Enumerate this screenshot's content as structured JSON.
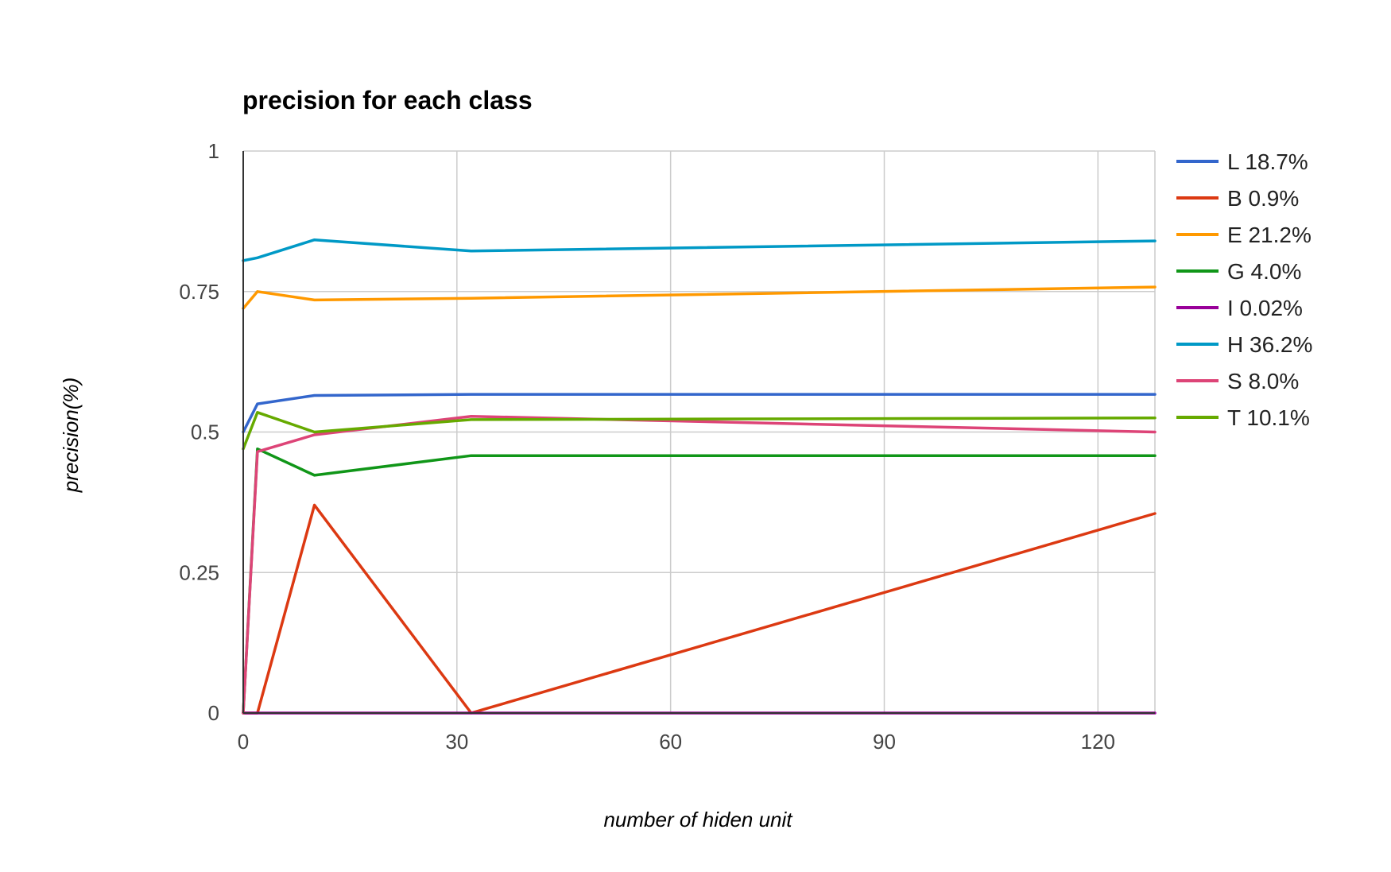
{
  "chart_data": {
    "type": "line",
    "title": "precision for each class",
    "xlabel": "number of hiden unit",
    "ylabel": "precision(%)",
    "xlim": [
      0,
      128
    ],
    "ylim": [
      0,
      1
    ],
    "x_ticks": [
      0,
      30,
      60,
      90,
      120
    ],
    "x_tick_labels": [
      "0",
      "30",
      "60",
      "90",
      "120"
    ],
    "y_ticks": [
      0,
      0.25,
      0.5,
      0.75,
      1
    ],
    "y_tick_labels": [
      "0",
      "0.25",
      "0.5",
      "0.75",
      "1"
    ],
    "grid": true,
    "legend_position": "right",
    "x": [
      0,
      2,
      10,
      32,
      128
    ],
    "series": [
      {
        "name": "L 18.7%",
        "color": "#3366cc",
        "values": [
          0.5,
          0.55,
          0.565,
          0.567,
          0.567
        ]
      },
      {
        "name": "B 0.9%",
        "color": "#dc3912",
        "values": [
          0.0,
          0.0,
          0.37,
          0.0,
          0.355
        ]
      },
      {
        "name": "E 21.2%",
        "color": "#ff9900",
        "values": [
          0.72,
          0.75,
          0.735,
          0.738,
          0.758
        ]
      },
      {
        "name": "G 4.0%",
        "color": "#109618",
        "values": [
          0.0,
          0.47,
          0.423,
          0.458,
          0.458
        ]
      },
      {
        "name": "I 0.02%",
        "color": "#990099",
        "values": [
          0.0,
          0.0,
          0.0,
          0.0,
          0.0
        ]
      },
      {
        "name": "H 36.2%",
        "color": "#0099c6",
        "values": [
          0.805,
          0.81,
          0.842,
          0.822,
          0.84
        ]
      },
      {
        "name": "S 8.0%",
        "color": "#dd4477",
        "values": [
          0.0,
          0.465,
          0.495,
          0.528,
          0.5
        ]
      },
      {
        "name": "T 10.1%",
        "color": "#66aa00",
        "values": [
          0.47,
          0.535,
          0.5,
          0.522,
          0.525
        ]
      }
    ]
  }
}
